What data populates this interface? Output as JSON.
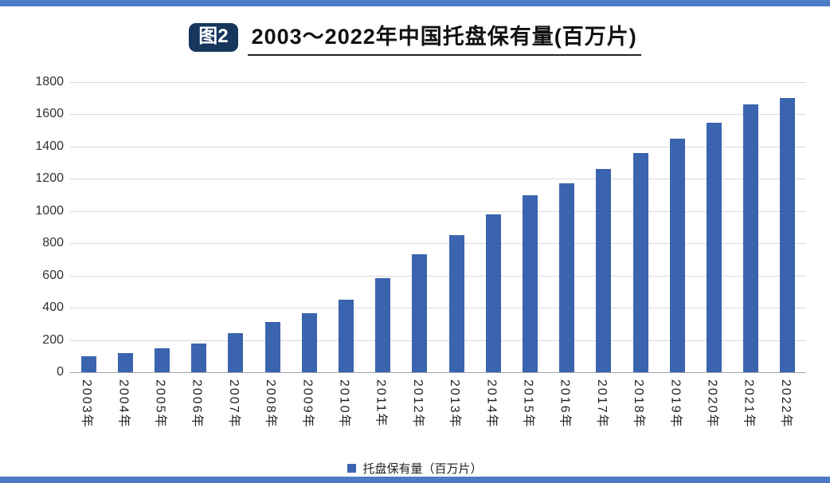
{
  "page": {
    "background": "#ffffff",
    "top_strip_color": "#4c7ac5",
    "bottom_strip_color": "#4c7ac5"
  },
  "header": {
    "badge_label": "图2",
    "badge_bg": "#16365c",
    "title": "2003～2022年中国托盘保有量(百万片)"
  },
  "chart_data": {
    "type": "bar",
    "title": "2003～2022年中国托盘保有量(百万片)",
    "categories": [
      "2003年",
      "2004年",
      "2005年",
      "2006年",
      "2007年",
      "2008年",
      "2009年",
      "2010年",
      "2011年",
      "2012年",
      "2013年",
      "2014年",
      "2015年",
      "2016年",
      "2017年",
      "2018年",
      "2019年",
      "2020年",
      "2021年",
      "2022年"
    ],
    "values": [
      100,
      118,
      150,
      180,
      240,
      310,
      365,
      450,
      585,
      730,
      850,
      980,
      1100,
      1170,
      1260,
      1360,
      1450,
      1550,
      1660,
      1700
    ],
    "xlabel": "",
    "ylabel": "",
    "ylim": [
      0,
      1800
    ],
    "ytick_step": 200,
    "grid": true,
    "bar_color": "#3a64ae",
    "legend": [
      "托盘保有量（百万片）"
    ],
    "legend_position": "bottom"
  }
}
